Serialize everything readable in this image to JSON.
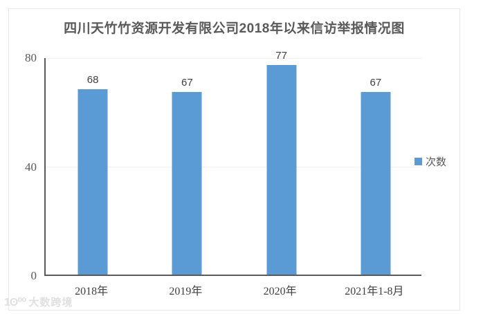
{
  "title": "四川天竹竹资源开发有限公司2018年以来信访举报情况图",
  "chart_data": {
    "type": "bar",
    "categories": [
      "2018年",
      "2019年",
      "2020年",
      "2021年1-8月"
    ],
    "series": [
      {
        "name": "次数",
        "values": [
          68,
          67,
          77,
          67
        ]
      }
    ],
    "data_labels": [
      "68",
      "67",
      "77",
      "67"
    ],
    "title": "四川天竹竹资源开发有限公司2018年以来信访举报情况图",
    "xlabel": "",
    "ylabel": "",
    "ylim": [
      0,
      80
    ],
    "yticks": [
      0,
      40,
      80
    ],
    "grid": true,
    "legend_position": "right",
    "bar_color": "#5B9BD5"
  },
  "legend": {
    "label": "次数",
    "color": "#5B9BD5"
  },
  "watermark": {
    "logo": "1ʘ⁰⁰",
    "text": "大数跨境"
  },
  "colors": {
    "bar": "#5B9BD5",
    "title_text": "#595959",
    "axis_line": "#595959",
    "gridline": "#f0f0f0",
    "box_border": "#e7e7e7"
  }
}
